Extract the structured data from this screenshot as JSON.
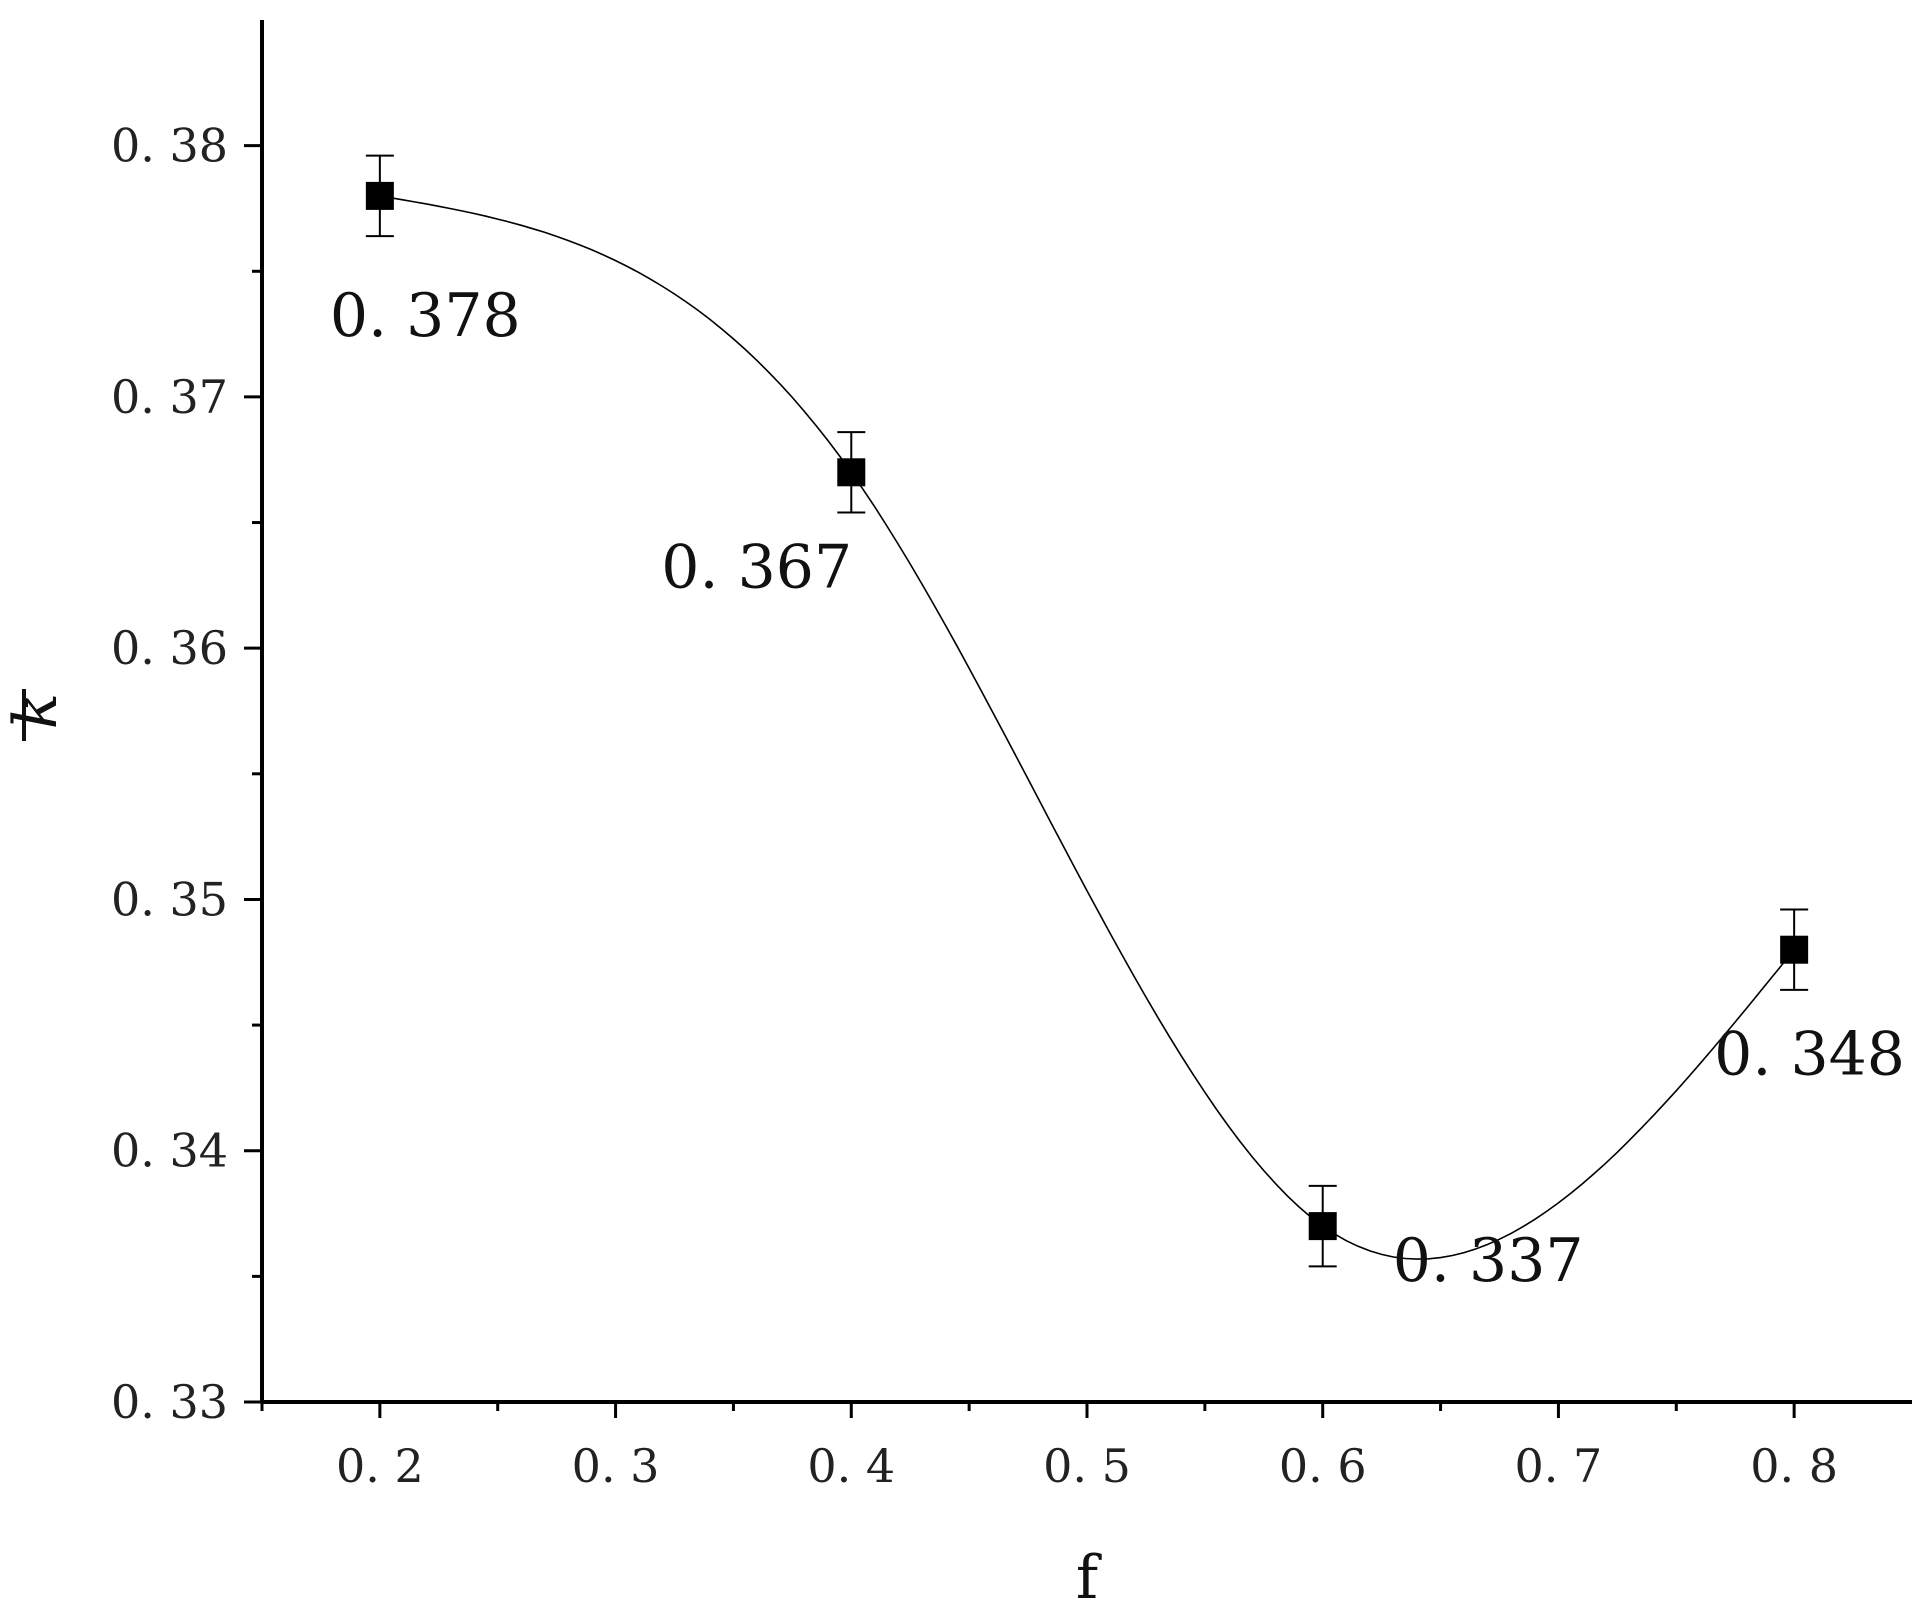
{
  "chart_data": {
    "type": "line",
    "title": "",
    "xlabel": "f",
    "ylabel": "k",
    "ylabel_overline": true,
    "xlim": [
      0.15,
      0.85
    ],
    "ylim": [
      0.33,
      0.385
    ],
    "x_ticks": [
      0.2,
      0.3,
      0.4,
      0.5,
      0.6,
      0.7,
      0.8
    ],
    "x_tick_labels": [
      "0. 2",
      "0. 3",
      "0. 4",
      "0. 5",
      "0. 6",
      "0. 7",
      "0. 8"
    ],
    "y_ticks": [
      0.33,
      0.34,
      0.35,
      0.36,
      0.37,
      0.38
    ],
    "y_tick_labels": [
      "0. 33",
      "0. 34",
      "0. 35",
      "0. 36",
      "0. 37",
      "0. 38"
    ],
    "grid": false,
    "legend": "none",
    "curve": "smooth spline",
    "marker": "filled square",
    "colors": {
      "line": "#000000",
      "marker": "#000000"
    },
    "series": [
      {
        "x": [
          0.2,
          0.4,
          0.6,
          0.8
        ],
        "y": [
          0.378,
          0.367,
          0.337,
          0.348
        ],
        "error": [
          0.0016,
          0.0016,
          0.0016,
          0.0016
        ],
        "data_labels": [
          "0. 378",
          "0. 367",
          "0. 337",
          "0. 348"
        ]
      }
    ]
  }
}
